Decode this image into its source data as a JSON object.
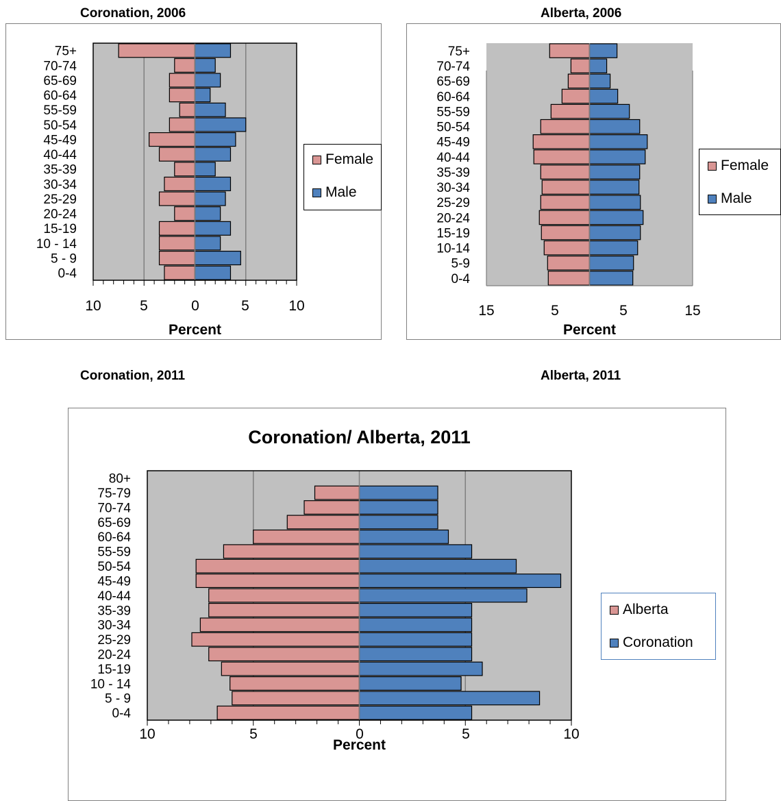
{
  "captions": {
    "c1": "Coronation, 2006",
    "c2": "Alberta, 2006",
    "c3": "Coronation, 2011",
    "c4": "Alberta, 2011"
  },
  "colors": {
    "female": "#d99694",
    "male": "#4f81bd",
    "plot_bg": "#c0c0c0",
    "grid": "#7f7f7f"
  },
  "chart_data": [
    {
      "type": "bar",
      "orientation": "horizontal-population-pyramid",
      "title": "Coronation, 2006",
      "xlabel": "Percent",
      "ylabel": "",
      "xlim": [
        -10,
        10
      ],
      "x_tick_labels": [
        "10",
        "5",
        "0",
        "5",
        "10"
      ],
      "categories": [
        "0-4",
        "5 - 9",
        "10 - 14",
        "15-19",
        "20-24",
        "25-29",
        "30-34",
        "35-39",
        "40-44",
        "45-49",
        "50-54",
        "55-59",
        "60-64",
        "65-69",
        "70-74",
        "75+"
      ],
      "series": [
        {
          "name": "Female",
          "color": "#d99694",
          "values": [
            3.0,
            3.5,
            3.5,
            3.5,
            2.0,
            3.5,
            3.0,
            2.0,
            3.5,
            4.5,
            2.5,
            1.5,
            2.5,
            2.5,
            2.0,
            7.5
          ]
        },
        {
          "name": "Male",
          "color": "#4f81bd",
          "values": [
            3.5,
            4.5,
            2.5,
            3.5,
            2.5,
            3.0,
            3.5,
            2.0,
            3.5,
            4.0,
            5.0,
            3.0,
            1.5,
            2.5,
            2.0,
            3.5
          ]
        }
      ],
      "grid": true,
      "legend": "right"
    },
    {
      "type": "bar",
      "orientation": "horizontal-population-pyramid",
      "title": "Alberta, 2006",
      "xlabel": "Percent",
      "ylabel": "",
      "xlim": [
        -15,
        15
      ],
      "x_tick_labels": [
        "15",
        "5",
        "5",
        "15"
      ],
      "categories": [
        "0-4",
        "5-9",
        "10-14",
        "15-19",
        "20-24",
        "25-29",
        "30-34",
        "35-39",
        "40-44",
        "45-49",
        "50-54",
        "55-59",
        "60-64",
        "65-69",
        "70-74",
        "75+"
      ],
      "series": [
        {
          "name": "Female",
          "color": "#d99694",
          "values": [
            6.0,
            6.1,
            6.6,
            7.0,
            7.3,
            7.1,
            6.9,
            7.1,
            8.1,
            8.2,
            7.1,
            5.6,
            4.0,
            3.1,
            2.7,
            5.8
          ]
        },
        {
          "name": "Male",
          "color": "#4f81bd",
          "values": [
            6.3,
            6.4,
            7.0,
            7.4,
            7.8,
            7.4,
            7.2,
            7.3,
            8.1,
            8.4,
            7.3,
            5.8,
            4.1,
            3.0,
            2.5,
            4.0
          ]
        }
      ],
      "grid": false,
      "legend": "right"
    },
    {
      "type": "bar",
      "orientation": "horizontal-population-pyramid",
      "title": "Coronation/ Alberta, 2011",
      "xlabel": "Percent",
      "ylabel": "",
      "xlim": [
        -10,
        10
      ],
      "x_tick_labels": [
        "10",
        "5",
        "0",
        "5",
        "10"
      ],
      "categories": [
        "0-4",
        "5 - 9",
        "10 - 14",
        "15-19",
        "20-24",
        "25-29",
        "30-34",
        "35-39",
        "40-44",
        "45-49",
        "50-54",
        "55-59",
        "60-64",
        "65-69",
        "70-74",
        "75-79",
        "80+"
      ],
      "series": [
        {
          "name": "Alberta",
          "color": "#d99694",
          "values": [
            6.7,
            6.0,
            6.1,
            6.5,
            7.1,
            7.9,
            7.5,
            7.1,
            7.1,
            7.7,
            7.7,
            6.4,
            5.0,
            3.4,
            2.6,
            2.1,
            0
          ]
        },
        {
          "name": "Coronation",
          "color": "#4f81bd",
          "values": [
            5.3,
            8.5,
            4.8,
            5.8,
            5.3,
            5.3,
            5.3,
            5.3,
            7.9,
            9.5,
            7.4,
            5.3,
            4.2,
            3.7,
            3.7,
            3.7,
            0
          ]
        }
      ],
      "grid": true,
      "legend": "right"
    }
  ]
}
